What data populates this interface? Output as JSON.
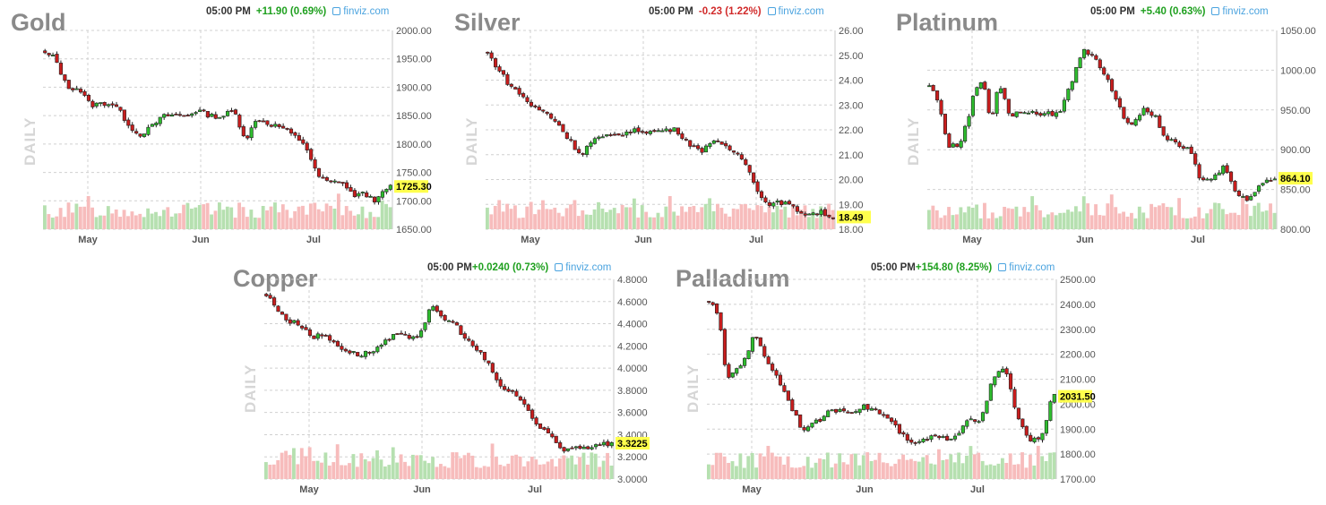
{
  "chart_data": [
    {
      "type": "candlestick",
      "title": "Gold",
      "watermark": "DAILY",
      "time": "05:00 PM",
      "change": "+11.90 (0.69%)",
      "change_direction": "up",
      "source": "finviz.com",
      "last_price": "1725.30",
      "y_ticks": [
        "2000.00",
        "1950.00",
        "1900.00",
        "1850.00",
        "1800.00",
        "1750.00",
        "1700.00",
        "1650.00"
      ],
      "ylim": [
        1650,
        2000
      ],
      "x_ticks": [
        "May",
        "Jun",
        "Jul"
      ],
      "grid": true,
      "keypoints": [
        [
          0,
          1960
        ],
        [
          3,
          1952
        ],
        [
          6,
          1900
        ],
        [
          9,
          1898
        ],
        [
          12,
          1868
        ],
        [
          15,
          1872
        ],
        [
          18,
          1870
        ],
        [
          21,
          1840
        ],
        [
          24,
          1815
        ],
        [
          27,
          1828
        ],
        [
          30,
          1848
        ],
        [
          33,
          1852
        ],
        [
          36,
          1850
        ],
        [
          39,
          1860
        ],
        [
          42,
          1850
        ],
        [
          45,
          1848
        ],
        [
          48,
          1860
        ],
        [
          51,
          1808
        ],
        [
          54,
          1845
        ],
        [
          57,
          1835
        ],
        [
          60,
          1830
        ],
        [
          63,
          1815
        ],
        [
          66,
          1800
        ],
        [
          69,
          1745
        ],
        [
          72,
          1732
        ],
        [
          75,
          1735
        ],
        [
          78,
          1710
        ],
        [
          81,
          1712
        ],
        [
          84,
          1700
        ],
        [
          87,
          1725
        ]
      ]
    },
    {
      "type": "candlestick",
      "title": "Silver",
      "watermark": "DAILY",
      "time": "05:00 PM",
      "change": "-0.23 (1.22%)",
      "change_direction": "down",
      "source": "finviz.com",
      "last_price": "18.49",
      "y_ticks": [
        "26.00",
        "25.00",
        "24.00",
        "23.00",
        "22.00",
        "21.00",
        "20.00",
        "19.00",
        "18.00"
      ],
      "ylim": [
        18,
        26
      ],
      "x_ticks": [
        "May",
        "Jun",
        "Jul"
      ],
      "grid": true,
      "keypoints": [
        [
          0,
          25.2
        ],
        [
          3,
          24.5
        ],
        [
          6,
          23.8
        ],
        [
          9,
          23.4
        ],
        [
          12,
          22.9
        ],
        [
          15,
          22.7
        ],
        [
          18,
          22.3
        ],
        [
          21,
          21.6
        ],
        [
          24,
          21.0
        ],
        [
          27,
          21.6
        ],
        [
          30,
          21.7
        ],
        [
          33,
          21.8
        ],
        [
          36,
          21.9
        ],
        [
          39,
          22.0
        ],
        [
          42,
          21.9
        ],
        [
          45,
          22.0
        ],
        [
          48,
          22.0
        ],
        [
          51,
          21.5
        ],
        [
          54,
          21.1
        ],
        [
          57,
          21.6
        ],
        [
          60,
          21.3
        ],
        [
          63,
          21.1
        ],
        [
          66,
          20.6
        ],
        [
          69,
          19.3
        ],
        [
          72,
          19.0
        ],
        [
          75,
          19.1
        ],
        [
          78,
          18.8
        ],
        [
          81,
          18.6
        ],
        [
          84,
          18.7
        ],
        [
          87,
          18.5
        ]
      ]
    },
    {
      "type": "candlestick",
      "title": "Platinum",
      "watermark": "DAILY",
      "time": "05:00 PM",
      "change": "+5.40 (0.63%)",
      "change_direction": "up",
      "source": "finviz.com",
      "last_price": "864.10",
      "y_ticks": [
        "1050.00",
        "1000.00",
        "950.00",
        "900.00",
        "850.00",
        "800.00"
      ],
      "ylim": [
        800,
        1050
      ],
      "x_ticks": [
        "May",
        "Jun",
        "Jul"
      ],
      "grid": true,
      "keypoints": [
        [
          0,
          985
        ],
        [
          3,
          960
        ],
        [
          5,
          905
        ],
        [
          8,
          905
        ],
        [
          10,
          935
        ],
        [
          12,
          975
        ],
        [
          14,
          990
        ],
        [
          16,
          935
        ],
        [
          18,
          985
        ],
        [
          21,
          940
        ],
        [
          24,
          950
        ],
        [
          27,
          945
        ],
        [
          30,
          945
        ],
        [
          33,
          945
        ],
        [
          36,
          980
        ],
        [
          39,
          1025
        ],
        [
          42,
          1020
        ],
        [
          45,
          990
        ],
        [
          48,
          960
        ],
        [
          51,
          925
        ],
        [
          54,
          950
        ],
        [
          57,
          945
        ],
        [
          60,
          915
        ],
        [
          63,
          905
        ],
        [
          66,
          900
        ],
        [
          69,
          860
        ],
        [
          72,
          865
        ],
        [
          75,
          880
        ],
        [
          78,
          845
        ],
        [
          81,
          835
        ],
        [
          84,
          860
        ],
        [
          87,
          864
        ]
      ]
    },
    {
      "type": "candlestick",
      "title": "Copper",
      "watermark": "DAILY",
      "time": "05:00 PM",
      "change": "+0.0240 (0.73%)",
      "change_direction": "up",
      "source": "finviz.com",
      "last_price": "3.3225",
      "y_ticks": [
        "4.8000",
        "4.6000",
        "4.4000",
        "4.2000",
        "4.0000",
        "3.8000",
        "3.6000",
        "3.4000",
        "3.2000",
        "3.0000"
      ],
      "ylim": [
        3.0,
        4.8
      ],
      "x_ticks": [
        "May",
        "Jun",
        "Jul"
      ],
      "grid": true,
      "keypoints": [
        [
          0,
          4.68
        ],
        [
          3,
          4.55
        ],
        [
          6,
          4.42
        ],
        [
          9,
          4.4
        ],
        [
          12,
          4.28
        ],
        [
          15,
          4.3
        ],
        [
          18,
          4.22
        ],
        [
          21,
          4.15
        ],
        [
          24,
          4.12
        ],
        [
          27,
          4.15
        ],
        [
          30,
          4.22
        ],
        [
          33,
          4.3
        ],
        [
          36,
          4.28
        ],
        [
          39,
          4.3
        ],
        [
          42,
          4.55
        ],
        [
          45,
          4.45
        ],
        [
          48,
          4.4
        ],
        [
          51,
          4.25
        ],
        [
          54,
          4.15
        ],
        [
          57,
          4.0
        ],
        [
          60,
          3.8
        ],
        [
          63,
          3.78
        ],
        [
          66,
          3.65
        ],
        [
          69,
          3.45
        ],
        [
          72,
          3.4
        ],
        [
          75,
          3.25
        ],
        [
          78,
          3.3
        ],
        [
          81,
          3.28
        ],
        [
          84,
          3.32
        ],
        [
          87,
          3.32
        ]
      ]
    },
    {
      "type": "candlestick",
      "title": "Palladium",
      "watermark": "DAILY",
      "time": "05:00 PM",
      "change": "+154.80 (8.25%)",
      "change_direction": "up",
      "source": "finviz.com",
      "last_price": "2031.50",
      "y_ticks": [
        "2500.00",
        "2400.00",
        "2300.00",
        "2200.00",
        "2100.00",
        "2000.00",
        "1900.00",
        "1800.00",
        "1700.00"
      ],
      "ylim": [
        1700,
        2500
      ],
      "x_ticks": [
        "May",
        "Jun",
        "Jul"
      ],
      "grid": true,
      "keypoints": [
        [
          0,
          2430
        ],
        [
          3,
          2350
        ],
        [
          5,
          2100
        ],
        [
          8,
          2150
        ],
        [
          10,
          2200
        ],
        [
          12,
          2280
        ],
        [
          15,
          2180
        ],
        [
          18,
          2100
        ],
        [
          21,
          2000
        ],
        [
          24,
          1900
        ],
        [
          27,
          1920
        ],
        [
          30,
          1960
        ],
        [
          33,
          1980
        ],
        [
          36,
          1970
        ],
        [
          39,
          1990
        ],
        [
          42,
          1980
        ],
        [
          45,
          1950
        ],
        [
          48,
          1900
        ],
        [
          51,
          1840
        ],
        [
          54,
          1850
        ],
        [
          57,
          1870
        ],
        [
          60,
          1860
        ],
        [
          63,
          1880
        ],
        [
          66,
          1950
        ],
        [
          69,
          1930
        ],
        [
          72,
          2100
        ],
        [
          75,
          2150
        ],
        [
          78,
          1960
        ],
        [
          81,
          1850
        ],
        [
          84,
          1860
        ],
        [
          87,
          2030
        ]
      ]
    }
  ]
}
